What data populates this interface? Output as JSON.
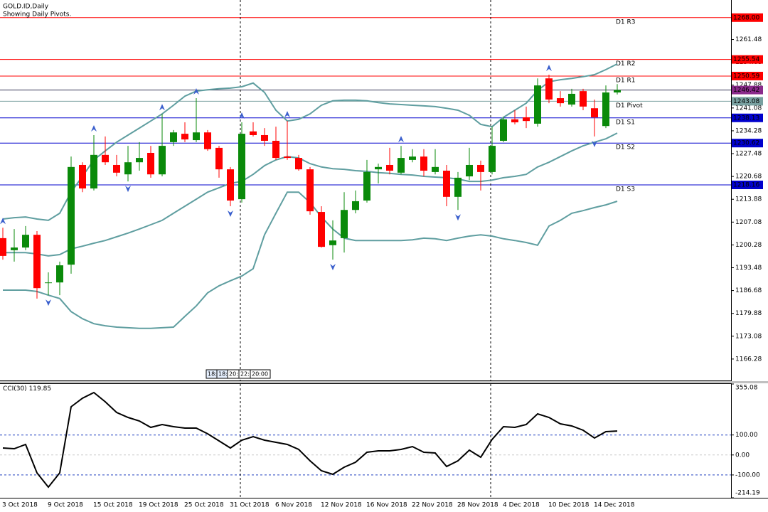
{
  "chart_data": [
    {
      "type": "candlestick",
      "title": "GOLD.ID,Daily",
      "subtitle": "Showing Daily Pivots.",
      "categories": [
        "3 Oct 2018",
        null,
        null,
        null,
        "9 Oct 2018",
        null,
        null,
        null,
        "15 Oct 2018",
        null,
        null,
        null,
        "19 Oct 2018",
        null,
        null,
        null,
        "25 Oct 2018",
        null,
        null,
        null,
        "31 Oct 2018",
        null,
        null,
        null,
        "6 Nov 2018",
        null,
        null,
        null,
        "12 Nov 2018",
        null,
        null,
        null,
        "16 Nov 2018",
        null,
        null,
        null,
        "22 Nov 2018",
        null,
        null,
        null,
        "28 Nov 2018",
        null,
        null,
        null,
        "4 Dec 2018",
        null,
        null,
        null,
        "10 Dec 2018",
        null,
        null,
        null,
        "14 Dec 2018",
        null,
        null
      ],
      "open": [
        1202.3,
        1198.7,
        1199.5,
        1203.3,
        1188.9,
        1189.1,
        1194.4,
        1224.1,
        1217.1,
        1227.1,
        1224.1,
        1221.3,
        1224.9,
        1227.7,
        1221.3,
        1230.9,
        1233.4,
        1231.5,
        1233.8,
        1229.2,
        1222.8,
        1213.9,
        1234.1,
        1233.0,
        1231.3,
        1226.6,
        1226.2,
        1222.8,
        1210.1,
        1200.2,
        1202.3,
        1210.7,
        1213.5,
        1222.8,
        1224.1,
        1221.8,
        1225.6,
        1226.6,
        1222.0,
        1222.4,
        1214.6,
        1220.7,
        1224.1,
        1222.0,
        1231.3,
        1237.7,
        1238.3,
        1236.4,
        1249.9,
        1244.0,
        1242.1,
        1246.1,
        1241.0,
        1235.7,
        1245.7
      ],
      "high": [
        1205.4,
        1205.0,
        1205.9,
        1204.4,
        1192.1,
        1195.3,
        1226.6,
        1224.9,
        1233.0,
        1232.6,
        1227.1,
        1229.8,
        1230.9,
        1229.8,
        1239.3,
        1234.5,
        1236.8,
        1244.0,
        1234.5,
        1229.8,
        1223.5,
        1236.8,
        1236.8,
        1235.1,
        1235.5,
        1237.2,
        1227.1,
        1223.5,
        1211.8,
        1207.6,
        1216.0,
        1216.5,
        1225.6,
        1224.5,
        1229.2,
        1229.8,
        1228.8,
        1228.8,
        1228.8,
        1224.1,
        1222.0,
        1229.2,
        1225.4,
        1235.5,
        1238.3,
        1240.4,
        1241.5,
        1249.9,
        1251.0,
        1246.1,
        1246.8,
        1246.8,
        1243.6,
        1247.8,
        1248.2
      ],
      "low": [
        1195.9,
        1195.3,
        1198.7,
        1184.3,
        1185.3,
        1185.3,
        1191.7,
        1216.0,
        1216.5,
        1224.1,
        1220.7,
        1219.2,
        1222.4,
        1220.3,
        1220.7,
        1229.8,
        1230.9,
        1230.9,
        1228.3,
        1220.3,
        1211.8,
        1212.9,
        1232.6,
        1229.8,
        1225.6,
        1225.6,
        1222.4,
        1209.3,
        1199.5,
        1195.9,
        1198.0,
        1209.7,
        1212.9,
        1218.6,
        1221.3,
        1221.3,
        1224.9,
        1220.7,
        1221.3,
        1211.8,
        1210.7,
        1219.6,
        1216.5,
        1221.3,
        1230.9,
        1236.2,
        1235.1,
        1235.5,
        1242.5,
        1241.5,
        1241.5,
        1240.4,
        1232.6,
        1235.1,
        1245.1
      ],
      "close": [
        1197.0,
        1199.5,
        1203.3,
        1187.4,
        1189.1,
        1194.2,
        1223.5,
        1217.1,
        1227.1,
        1224.9,
        1221.8,
        1224.9,
        1226.2,
        1221.3,
        1229.8,
        1233.8,
        1231.7,
        1233.8,
        1228.8,
        1222.8,
        1213.5,
        1233.4,
        1233.0,
        1231.3,
        1226.2,
        1226.2,
        1222.8,
        1210.3,
        1199.7,
        1201.6,
        1210.7,
        1213.3,
        1222.0,
        1223.5,
        1222.4,
        1226.2,
        1226.6,
        1222.4,
        1223.5,
        1214.6,
        1220.3,
        1224.1,
        1222.0,
        1229.8,
        1237.7,
        1236.8,
        1237.2,
        1247.8,
        1243.6,
        1242.5,
        1245.3,
        1241.5,
        1238.3,
        1245.7,
        1246.42
      ],
      "up_color": "#0a8a0a",
      "down_color": "#ff0000",
      "bands": {
        "color": "#5f9ea0",
        "upper": [
          1208.0,
          1208.4,
          1208.6,
          1208.0,
          1207.6,
          1209.7,
          1216.0,
          1220.7,
          1225.6,
          1228.3,
          1230.9,
          1233.0,
          1235.1,
          1237.2,
          1239.3,
          1241.9,
          1244.6,
          1246.1,
          1246.5,
          1246.8,
          1247.0,
          1247.4,
          1248.5,
          1245.7,
          1240.4,
          1237.2,
          1237.7,
          1239.3,
          1241.9,
          1243.2,
          1243.4,
          1243.4,
          1243.2,
          1242.7,
          1242.3,
          1242.1,
          1241.9,
          1241.7,
          1241.5,
          1241.0,
          1240.4,
          1238.9,
          1236.2,
          1235.5,
          1238.3,
          1240.4,
          1242.5,
          1246.3,
          1248.9,
          1249.5,
          1249.9,
          1250.4,
          1251.0,
          1252.5,
          1254.2
        ],
        "middle": [
          1198.0,
          1198.0,
          1198.0,
          1197.6,
          1197.0,
          1197.4,
          1199.1,
          1199.9,
          1200.8,
          1201.6,
          1202.7,
          1203.8,
          1205.0,
          1206.3,
          1207.6,
          1209.7,
          1211.8,
          1213.9,
          1216.0,
          1217.3,
          1218.6,
          1219.2,
          1221.3,
          1223.9,
          1225.6,
          1226.6,
          1226.2,
          1224.5,
          1223.5,
          1223.0,
          1222.8,
          1222.4,
          1222.2,
          1221.8,
          1221.6,
          1221.3,
          1221.1,
          1220.7,
          1220.5,
          1220.3,
          1219.9,
          1219.2,
          1219.2,
          1219.6,
          1220.3,
          1220.7,
          1221.3,
          1223.5,
          1224.9,
          1226.6,
          1228.3,
          1229.8,
          1230.9,
          1231.9,
          1233.6
        ],
        "lower": [
          1186.8,
          1186.8,
          1186.8,
          1186.4,
          1185.3,
          1184.3,
          1180.4,
          1178.3,
          1176.8,
          1176.2,
          1175.8,
          1175.6,
          1175.4,
          1175.4,
          1175.6,
          1175.8,
          1179.0,
          1182.1,
          1186.0,
          1188.1,
          1189.6,
          1191.0,
          1193.2,
          1203.3,
          1209.7,
          1216.0,
          1216.0,
          1212.9,
          1208.6,
          1205.0,
          1202.3,
          1201.6,
          1201.6,
          1201.6,
          1201.6,
          1201.6,
          1201.8,
          1202.3,
          1202.1,
          1201.6,
          1202.3,
          1202.9,
          1203.3,
          1202.9,
          1202.1,
          1201.6,
          1201.0,
          1200.2,
          1205.9,
          1207.6,
          1209.7,
          1210.5,
          1211.4,
          1212.2,
          1213.3
        ]
      },
      "fractals": {
        "color": "#3a5fcd",
        "up": [
          1205.4,
          null,
          null,
          null,
          null,
          null,
          null,
          null,
          1233.0,
          null,
          null,
          null,
          null,
          null,
          1239.3,
          null,
          null,
          1244.0,
          null,
          null,
          null,
          1236.8,
          null,
          null,
          null,
          1237.2,
          null,
          null,
          null,
          null,
          null,
          null,
          null,
          null,
          null,
          1229.8,
          null,
          null,
          null,
          null,
          null,
          null,
          null,
          null,
          null,
          null,
          null,
          null,
          1251.0,
          null,
          null,
          null,
          null,
          null,
          null
        ],
        "down": [
          null,
          null,
          null,
          null,
          1185.3,
          null,
          null,
          null,
          null,
          null,
          null,
          1219.2,
          null,
          null,
          null,
          null,
          null,
          null,
          null,
          null,
          1211.8,
          null,
          null,
          null,
          null,
          null,
          null,
          null,
          null,
          1195.9,
          null,
          null,
          null,
          null,
          null,
          null,
          null,
          null,
          null,
          null,
          1210.7,
          null,
          null,
          null,
          null,
          null,
          null,
          null,
          null,
          null,
          null,
          null,
          1232.6,
          null,
          null
        ]
      },
      "pivots": {
        "names": [
          "D1 R3",
          "D1 R2",
          "D1 R1",
          "D1 Pivot",
          "D1 S1",
          "D1 S2",
          "D1 S3"
        ],
        "values": [
          1268,
          1255.54,
          1250.59,
          1243.08,
          1238.13,
          1230.62,
          1218.16
        ],
        "value_labels": [
          "1268.00",
          "1255.54",
          "1250.59",
          "1243.08",
          "1238.13",
          "1230.62",
          "1218.16"
        ],
        "colors": [
          "#ff0000",
          "#ff0000",
          "#ff0000",
          "#78a0a0",
          "#0000cd",
          "#0000cd",
          "#0000cd"
        ]
      },
      "bid": {
        "value": 1246.42,
        "color": "#8b2a8b"
      },
      "ylim": [
        1159.9,
        1273.25
      ],
      "yticks": [
        1261.48,
        1254.68,
        1247.88,
        1241.08,
        1234.28,
        1227.48,
        1220.68,
        1213.88,
        1207.08,
        1200.28,
        1193.48,
        1186.68,
        1179.88,
        1173.08,
        1166.28
      ]
    },
    {
      "type": "line",
      "title": "CCI(30)",
      "last_value": 119.85,
      "color": "#000000",
      "values": [
        34.9,
        31.3,
        52.6,
        -89.6,
        -160.8,
        -89.6,
        241.2,
        283.8,
        312.3,
        266.1,
        212.7,
        187.8,
        170.0,
        138.0,
        152.2,
        141.6,
        134.5,
        134.5,
        106.0,
        70.4,
        34.9,
        74.0,
        91.8,
        74.0,
        63.3,
        52.6,
        27.7,
        -29.2,
        -79.0,
        -96.8,
        -61.2,
        -36.3,
        13.5,
        20.6,
        20.6,
        27.7,
        42.0,
        13.5,
        10.0,
        -57.6,
        -29.2,
        24.2,
        -11.4,
        77.5,
        141.6,
        138.0,
        152.2,
        205.6,
        187.8,
        155.8,
        145.1,
        123.8,
        84.7,
        116.7,
        119.85
      ],
      "ylim": [
        -214.19,
        355.08
      ],
      "yticks": [
        355.08,
        {
          "value": 100,
          "label": "100.00"
        },
        {
          "value": 0,
          "label": "0.00"
        },
        {
          "value": -100,
          "label": "-100.00"
        },
        -214.19
      ]
    }
  ],
  "time_tags": [
    "18:",
    "18:",
    "20:",
    "22:",
    "20:00"
  ]
}
